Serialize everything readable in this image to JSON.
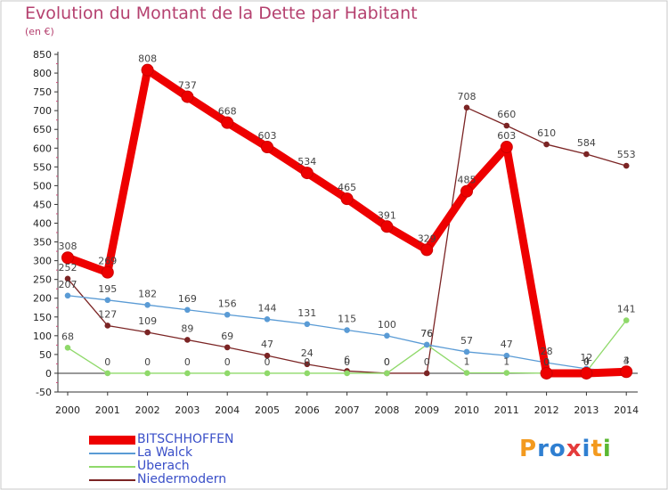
{
  "chart_data": {
    "type": "line",
    "title": "Evolution du Montant de la Dette par Habitant",
    "subtitle": "(en €)",
    "x": [
      2000,
      2001,
      2002,
      2003,
      2004,
      2005,
      2006,
      2007,
      2008,
      2009,
      2010,
      2011,
      2012,
      2013,
      2014
    ],
    "ylim": [
      -50,
      850
    ],
    "yticks": [
      -50,
      0,
      50,
      100,
      150,
      200,
      250,
      300,
      350,
      400,
      450,
      500,
      550,
      600,
      650,
      700,
      750,
      800,
      850
    ],
    "grid": false,
    "legend_position": "bottom-left",
    "series": [
      {
        "name": "BITSCHHOFFEN",
        "color": "#ee0000",
        "values": [
          308,
          269,
          808,
          737,
          668,
          603,
          534,
          465,
          391,
          329,
          485,
          603,
          0,
          0,
          4
        ],
        "labels": [
          "308",
          "269",
          "808",
          "737",
          "668",
          "603",
          "534",
          "465",
          "391",
          "329",
          "485",
          "603",
          "0",
          "0",
          "4"
        ]
      },
      {
        "name": "La Walck",
        "color": "#5a9bd5",
        "values": [
          207,
          195,
          182,
          169,
          156,
          144,
          131,
          115,
          100,
          76,
          57,
          47,
          28,
          12,
          3
        ],
        "labels": [
          "207",
          "195",
          "182",
          "169",
          "156",
          "144",
          "131",
          "115",
          "100",
          "76",
          "57",
          "47",
          "28",
          "12",
          "3"
        ]
      },
      {
        "name": "Uberach",
        "color": "#8fd96a",
        "values": [
          68,
          0,
          0,
          0,
          0,
          0,
          0,
          0,
          0,
          76,
          1,
          1,
          0,
          4,
          141
        ],
        "labels": [
          "68",
          "0",
          "0",
          "0",
          "0",
          "0",
          "0",
          "0",
          "0",
          "76",
          "1",
          "1",
          "0",
          "4",
          "141"
        ]
      },
      {
        "name": "Niedermodern",
        "color": "#7b2424",
        "values": [
          252,
          127,
          109,
          89,
          69,
          47,
          24,
          6,
          0,
          0,
          708,
          660,
          610,
          584,
          553
        ],
        "labels": [
          "252",
          "127",
          "109",
          "89",
          "69",
          "47",
          "24",
          "6",
          "0",
          "0",
          "708",
          "660",
          "610",
          "584",
          "553"
        ]
      }
    ]
  },
  "logo": {
    "text": "Proxiti",
    "colors": [
      "#f39a1e",
      "#2f7fd1",
      "#2f7fd1",
      "#e53b3b",
      "#2f7fd1",
      "#f39a1e",
      "#5bb832"
    ]
  }
}
